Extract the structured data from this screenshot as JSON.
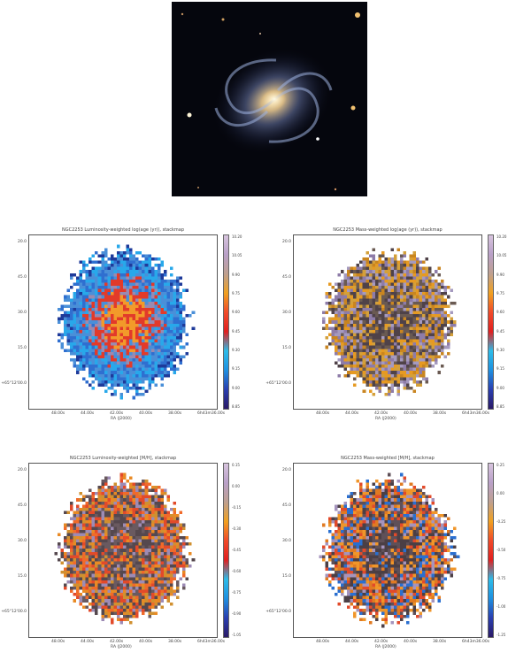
{
  "galaxy": {
    "description_icon": "galaxy-photo"
  },
  "panels": [
    {
      "id": "lw-age",
      "title": "NGC2253 Luminosity-weighted log(age (yr)), stackmap",
      "xlabel": "RA (J2000)",
      "xticks": [
        "48.00s",
        "44.00s",
        "42.00s",
        "40.00s",
        "38.00s",
        "6h43m36.00s"
      ],
      "yticks": [
        "20.0",
        "45.0",
        "30.0",
        "15.0",
        "+65°12'00.0"
      ],
      "cticks": [
        "10.20",
        "10.05",
        "9.90",
        "9.75",
        "9.60",
        "9.45",
        "9.30",
        "9.15",
        "9.00",
        "8.85"
      ],
      "cmap": [
        "#2a1a66",
        "#2a3fb0",
        "#1e90e0",
        "#2dbbe8",
        "#e02020",
        "#f04a2a",
        "#f0a020",
        "#bfa08f",
        "#b9a0c8",
        "#d7c4de"
      ],
      "palette": [
        "#4a8fd8",
        "#2f6fd0",
        "#28a8ea",
        "#e23a2a",
        "#f05a24",
        "#f29a2a",
        "#9a8ab0",
        "#5a6fb8",
        "#1e3a9a"
      ]
    },
    {
      "id": "mw-age",
      "title": "NGC2253 Mass-weighted log(age (yr)), stackmap",
      "xlabel": "RA (J2000)",
      "xticks": [
        "48.00s",
        "44.00s",
        "42.00s",
        "40.00s",
        "38.00s",
        "6h43m36.00s"
      ],
      "yticks": [
        "20.0",
        "45.0",
        "30.0",
        "15.0",
        "+65°12'00.0"
      ],
      "cticks": [
        "10.20",
        "10.05",
        "9.90",
        "9.75",
        "9.60",
        "9.45",
        "9.30",
        "9.15",
        "9.00",
        "8.85"
      ],
      "cmap": [
        "#2a1a66",
        "#2a3fb0",
        "#1e90e0",
        "#2dbbe8",
        "#e02020",
        "#f04a2a",
        "#f0a020",
        "#bfa08f",
        "#b9a0c8",
        "#d7c4de"
      ],
      "palette": [
        "#e69a22",
        "#c98520",
        "#6a5a52",
        "#4f4248",
        "#a59abf",
        "#8e7ca8",
        "#d4a03a"
      ]
    },
    {
      "id": "lw-met",
      "title": "NGC2253 Luminosity-weighted [M/H], stackmap",
      "xlabel": "RA (J2000)",
      "xticks": [
        "48.00s",
        "44.00s",
        "42.00s",
        "40.00s",
        "38.00s",
        "6h43m36.00s"
      ],
      "yticks": [
        "20.0",
        "45.0",
        "30.0",
        "15.0",
        "+65°12'00.0"
      ],
      "cticks": [
        "0.15",
        "0.00",
        "-0.15",
        "-0.30",
        "-0.45",
        "-0.60",
        "-0.75",
        "-0.90",
        "-1.05"
      ],
      "cmap": [
        "#2a1a66",
        "#2a3fb0",
        "#1e90e0",
        "#2dbbe8",
        "#e02020",
        "#f04a2a",
        "#f0a020",
        "#bfa08f",
        "#b9a0c8",
        "#d7c4de"
      ],
      "palette": [
        "#e98a24",
        "#f06a2a",
        "#6a5a60",
        "#55484e",
        "#9d8bb5",
        "#d09030",
        "#e24a2a"
      ]
    },
    {
      "id": "mw-met",
      "title": "NGC2253 Mass-weighted [M/H], stackmap",
      "xlabel": "RA (J2000)",
      "xticks": [
        "48.00s",
        "44.00s",
        "42.00s",
        "40.00s",
        "38.00s",
        "6h43m36.00s"
      ],
      "yticks": [
        "20.0",
        "45.0",
        "30.0",
        "15.0",
        "+65°12'00.0"
      ],
      "cticks": [
        "0.25",
        "0.00",
        "-0.25",
        "-0.50",
        "-0.75",
        "-1.00",
        "-1.25"
      ],
      "cmap": [
        "#2a1a66",
        "#2a3fb0",
        "#1e90e0",
        "#2dbbe8",
        "#e02020",
        "#f04a2a",
        "#f0a020",
        "#bfa08f",
        "#b9a0c8",
        "#d7c4de"
      ],
      "palette": [
        "#f0962a",
        "#e07a22",
        "#5f5058",
        "#4b3f45",
        "#a594bd",
        "#e24a2a",
        "#2a6fd0"
      ]
    }
  ]
}
